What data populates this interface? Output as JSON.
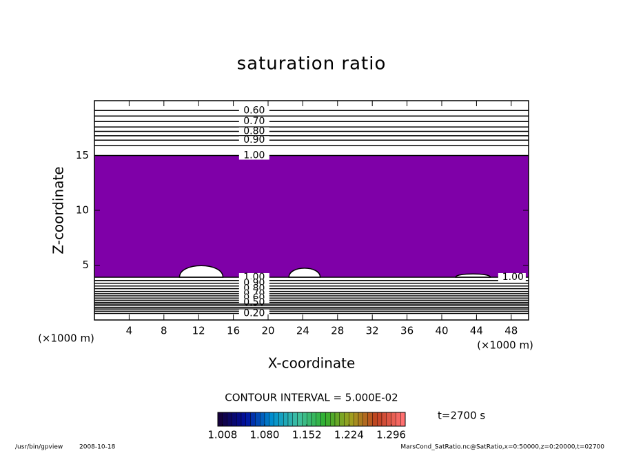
{
  "chart_data": {
    "type": "contour",
    "title": "saturation ratio",
    "x_label": "X-coordinate",
    "y_label": "Z-coordinate",
    "x_unit": "(×1000 m)",
    "y_unit": "(×1000 m)",
    "xlim": [
      0,
      50
    ],
    "ylim": [
      0,
      20
    ],
    "xticks": [
      4,
      8,
      12,
      16,
      20,
      24,
      28,
      32,
      36,
      40,
      44,
      48
    ],
    "yticks": [
      5,
      10,
      15
    ],
    "fill_color": "#7f00a8",
    "fill_region": {
      "z0": 3.9,
      "z1": 15
    },
    "bumps": [
      {
        "x0": 9.8,
        "x1": 14.8,
        "ztop": 5.3
      },
      {
        "x0": 22.4,
        "x1": 26.0,
        "ztop": 5.0
      },
      {
        "x0": 41.6,
        "x1": 45.6,
        "ztop": 4.3
      }
    ],
    "contours": [
      {
        "level": {
          "value": 0.6,
          "label": "0.60"
        },
        "z": 19.1
      },
      {
        "level": 0.65,
        "z": 18.6
      },
      {
        "level": {
          "value": 0.7,
          "label": "0.70"
        },
        "z": 18.1
      },
      {
        "level": 0.75,
        "z": 17.6
      },
      {
        "level": {
          "value": 0.8,
          "label": "0.80"
        },
        "z": 17.2
      },
      {
        "level": 0.85,
        "z": 16.8
      },
      {
        "level": {
          "value": 0.9,
          "label": "0.90"
        },
        "z": 16.4
      },
      {
        "level": 0.95,
        "z": 15.9
      },
      {
        "level": {
          "value": 1.0,
          "label": "1.00"
        },
        "z": 15.0
      },
      {
        "level": {
          "value": 1.0,
          "label": "1.00"
        },
        "z": 3.9
      },
      {
        "level": 0.95,
        "z": 3.6
      },
      {
        "level": {
          "value": 0.9,
          "label": "0.90"
        },
        "z": 3.35
      },
      {
        "level": 0.85,
        "z": 3.1
      },
      {
        "level": {
          "value": 0.8,
          "label": "0.80"
        },
        "z": 2.85
      },
      {
        "level": 0.75,
        "z": 2.6
      },
      {
        "level": {
          "value": 0.7,
          "label": "0.70"
        },
        "z": 2.4
      },
      {
        "level": 0.65,
        "z": 2.2
      },
      {
        "level": {
          "value": 0.6,
          "label": "0.60"
        },
        "z": 2.0
      },
      {
        "level": 0.55,
        "z": 1.8
      },
      {
        "level": {
          "value": 0.5,
          "label": "0.50"
        },
        "z": 1.6
      },
      {
        "level": 0.45,
        "z": 1.45
      },
      {
        "level": 0.4,
        "z": 1.3
      },
      {
        "level": 0.35,
        "z": 1.15
      },
      {
        "level": 0.3,
        "z": 1.0
      },
      {
        "level": 0.25,
        "z": 0.8
      },
      {
        "level": {
          "value": 0.2,
          "label": "0.20"
        },
        "z": 0.6
      }
    ],
    "contour_interval_label": "CONTOUR INTERVAL = 5.000E-02",
    "time_label": "t=2700 s",
    "colorbar": {
      "clim": [
        1.0,
        1.32
      ],
      "colors": [
        "#14003c",
        "#0010a0",
        "#0090d0",
        "#40c0a0",
        "#30b030",
        "#a0a020",
        "#c04020",
        "#ff7070"
      ],
      "ticks": [
        1.008,
        {
          "value": 1.08,
          "label": "1.080"
        },
        1.152,
        1.224,
        1.296
      ]
    },
    "footer_left": "/usr/bin/gpview",
    "footer_date": "2008-10-18",
    "footer_right": "MarsCond_SatRatio.nc@SatRatio,x=0:50000,z=0:20000,t=02700"
  }
}
